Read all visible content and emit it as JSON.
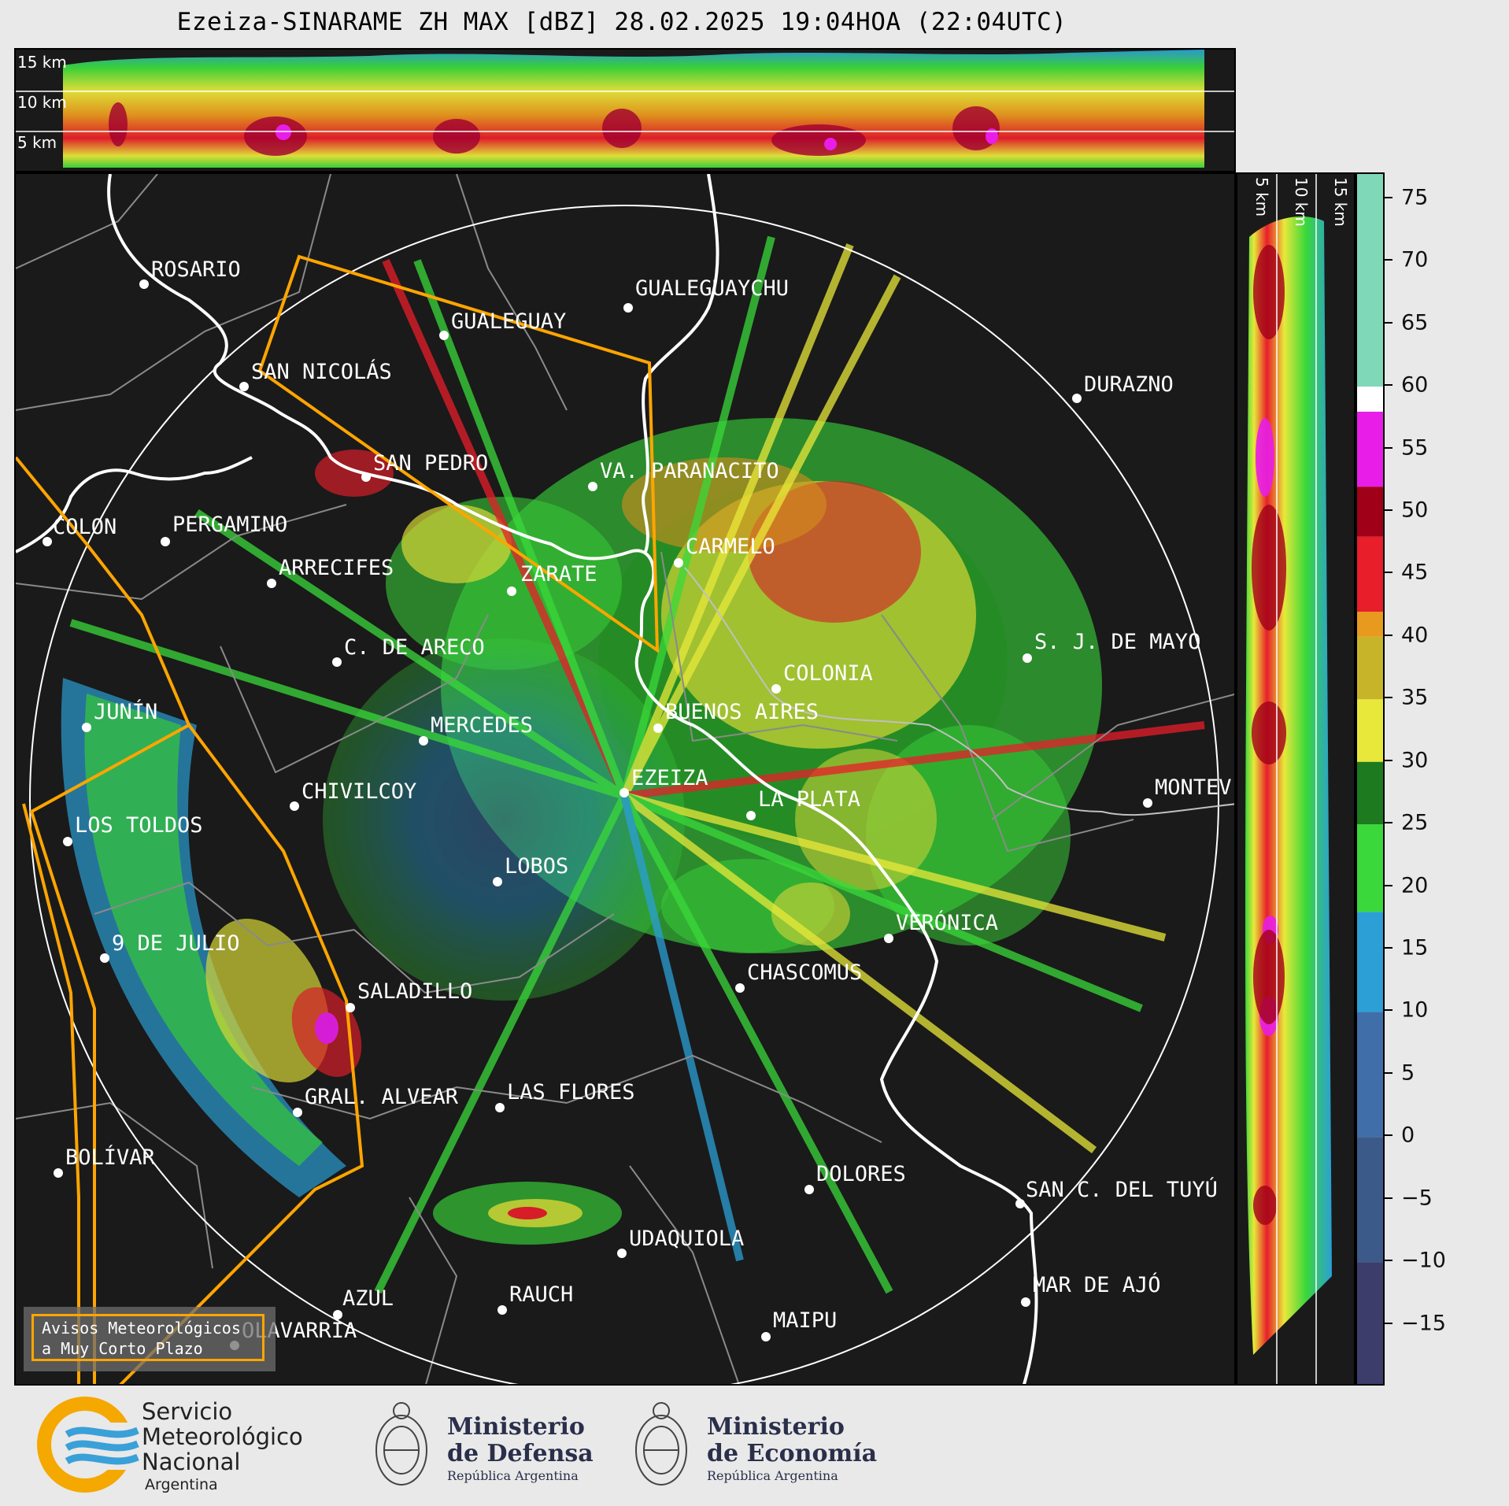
{
  "title": "Ezeiza-SINARAME ZH MAX [dBZ] 28.02.2025 19:04HOA (22:04UTC)",
  "cross_section_top": {
    "height_labels": [
      "15 km",
      "10 km",
      "5 km"
    ]
  },
  "cross_section_side": {
    "height_labels": [
      "5 km",
      "10 km",
      "15 km"
    ]
  },
  "colorbar": {
    "unit": "dBZ",
    "ticks": [
      "75",
      "70",
      "65",
      "60",
      "55",
      "50",
      "45",
      "40",
      "35",
      "30",
      "25",
      "20",
      "15",
      "10",
      "5",
      "0",
      "−5",
      "−10",
      "−15"
    ],
    "tick_values": [
      75,
      70,
      65,
      60,
      55,
      50,
      45,
      40,
      35,
      30,
      25,
      20,
      15,
      10,
      5,
      0,
      -5,
      -10,
      -15
    ],
    "range": [
      -20,
      77
    ],
    "colors": {
      "very_low": "#3d3d6b",
      "low": "#3f6ea8",
      "light": "#2b9fd6",
      "green": "#3ad83a",
      "dark_green": "#1e7a1e",
      "yellow": "#e8e83a",
      "orange": "#e89a1e",
      "red": "#e81e2a",
      "dark_red": "#a00018",
      "magenta": "#e81ee8",
      "white": "#ffffff",
      "teal": "#7fd8b8"
    }
  },
  "map": {
    "radar_site": "EZEIZA",
    "cities": [
      {
        "name": "ROSARIO"
      },
      {
        "name": "GUALEGUAYCHU"
      },
      {
        "name": "GUALEGUAY"
      },
      {
        "name": "SAN NICOLÁS"
      },
      {
        "name": "DURAZNO"
      },
      {
        "name": "SAN PEDRO"
      },
      {
        "name": "VA. PARANACITO"
      },
      {
        "name": "COLON"
      },
      {
        "name": "PERGAMINO"
      },
      {
        "name": "CARMELO"
      },
      {
        "name": "ARRECIFES"
      },
      {
        "name": "ZARATE"
      },
      {
        "name": "S. J. DE MAYO"
      },
      {
        "name": "C. DE ARECO"
      },
      {
        "name": "COLONIA"
      },
      {
        "name": "JUNÍN"
      },
      {
        "name": "BUENOS AIRES"
      },
      {
        "name": "MERCEDES"
      },
      {
        "name": "EZEIZA"
      },
      {
        "name": "MONTEV"
      },
      {
        "name": "CHIVILCOY"
      },
      {
        "name": "LA PLATA"
      },
      {
        "name": "LOS TOLDOS"
      },
      {
        "name": "LOBOS"
      },
      {
        "name": "VERÓNICA"
      },
      {
        "name": "9 DE JULIO"
      },
      {
        "name": "CHASCOMUS"
      },
      {
        "name": "SALADILLO"
      },
      {
        "name": "GRAL. ALVEAR"
      },
      {
        "name": "LAS FLORES"
      },
      {
        "name": "BOLÍVAR"
      },
      {
        "name": "DOLORES"
      },
      {
        "name": "SAN C. DEL TUYÚ"
      },
      {
        "name": "UDAQUIOLA"
      },
      {
        "name": "AZUL"
      },
      {
        "name": "RAUCH"
      },
      {
        "name": "MAR DE AJÓ"
      },
      {
        "name": "OLAVARRÍA"
      },
      {
        "name": "MAIPU"
      }
    ],
    "alert_box": {
      "line1": "Avisos Meteorológicos",
      "line2": "a Muy Corto Plazo"
    }
  },
  "footer": {
    "smn": {
      "line1": "Servicio",
      "line2": "Meteorológico",
      "line3": "Nacional",
      "line4": "Argentina"
    },
    "defensa": {
      "line1": "Ministerio",
      "line2": "de Defensa",
      "line3": "República Argentina"
    },
    "economia": {
      "line1": "Ministerio",
      "line2": "de Economía",
      "line3": "República Argentina"
    }
  }
}
